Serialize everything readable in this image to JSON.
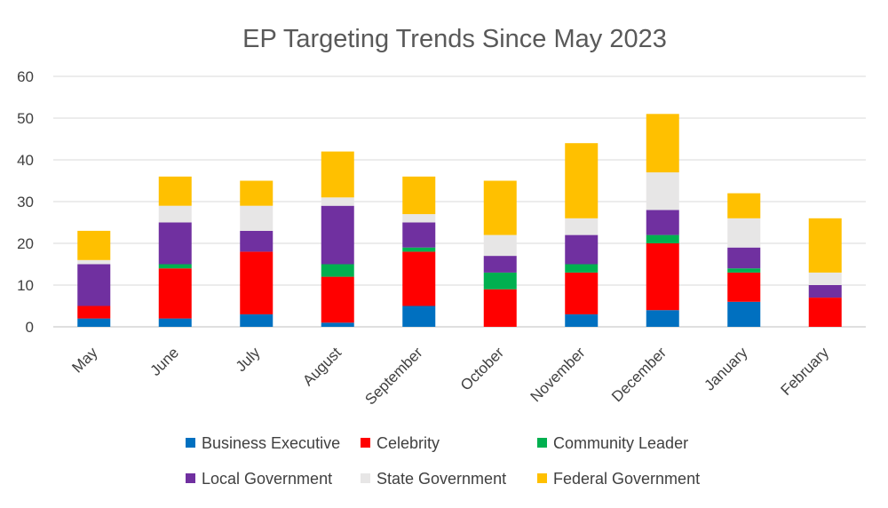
{
  "chart_data": {
    "type": "bar",
    "stacked": true,
    "title": "EP Targeting Trends Since May 2023",
    "xlabel": "",
    "ylabel": "",
    "ylim": [
      0,
      60
    ],
    "yticks": [
      0,
      10,
      20,
      30,
      40,
      50,
      60
    ],
    "grid": true,
    "legend_position": "bottom",
    "categories": [
      "May",
      "June",
      "July",
      "August",
      "September",
      "October",
      "November",
      "December",
      "January",
      "February"
    ],
    "series": [
      {
        "name": "Business Executive",
        "color": "#0070C0",
        "values": [
          2,
          2,
          3,
          1,
          5,
          0,
          3,
          4,
          6,
          0
        ]
      },
      {
        "name": "Celebrity",
        "color": "#FF0000",
        "values": [
          3,
          12,
          15,
          11,
          13,
          9,
          10,
          16,
          7,
          7
        ]
      },
      {
        "name": "Community Leader",
        "color": "#00B050",
        "values": [
          0,
          1,
          0,
          3,
          1,
          4,
          2,
          2,
          1,
          0
        ]
      },
      {
        "name": "Local Government",
        "color": "#7030A0",
        "values": [
          10,
          10,
          5,
          14,
          6,
          4,
          7,
          6,
          5,
          3
        ]
      },
      {
        "name": "State Government",
        "color": "#E7E6E6",
        "values": [
          1,
          4,
          6,
          2,
          2,
          5,
          4,
          9,
          7,
          3
        ]
      },
      {
        "name": "Federal Government",
        "color": "#FFC000",
        "values": [
          7,
          7,
          6,
          11,
          9,
          13,
          18,
          14,
          6,
          13
        ]
      }
    ]
  }
}
